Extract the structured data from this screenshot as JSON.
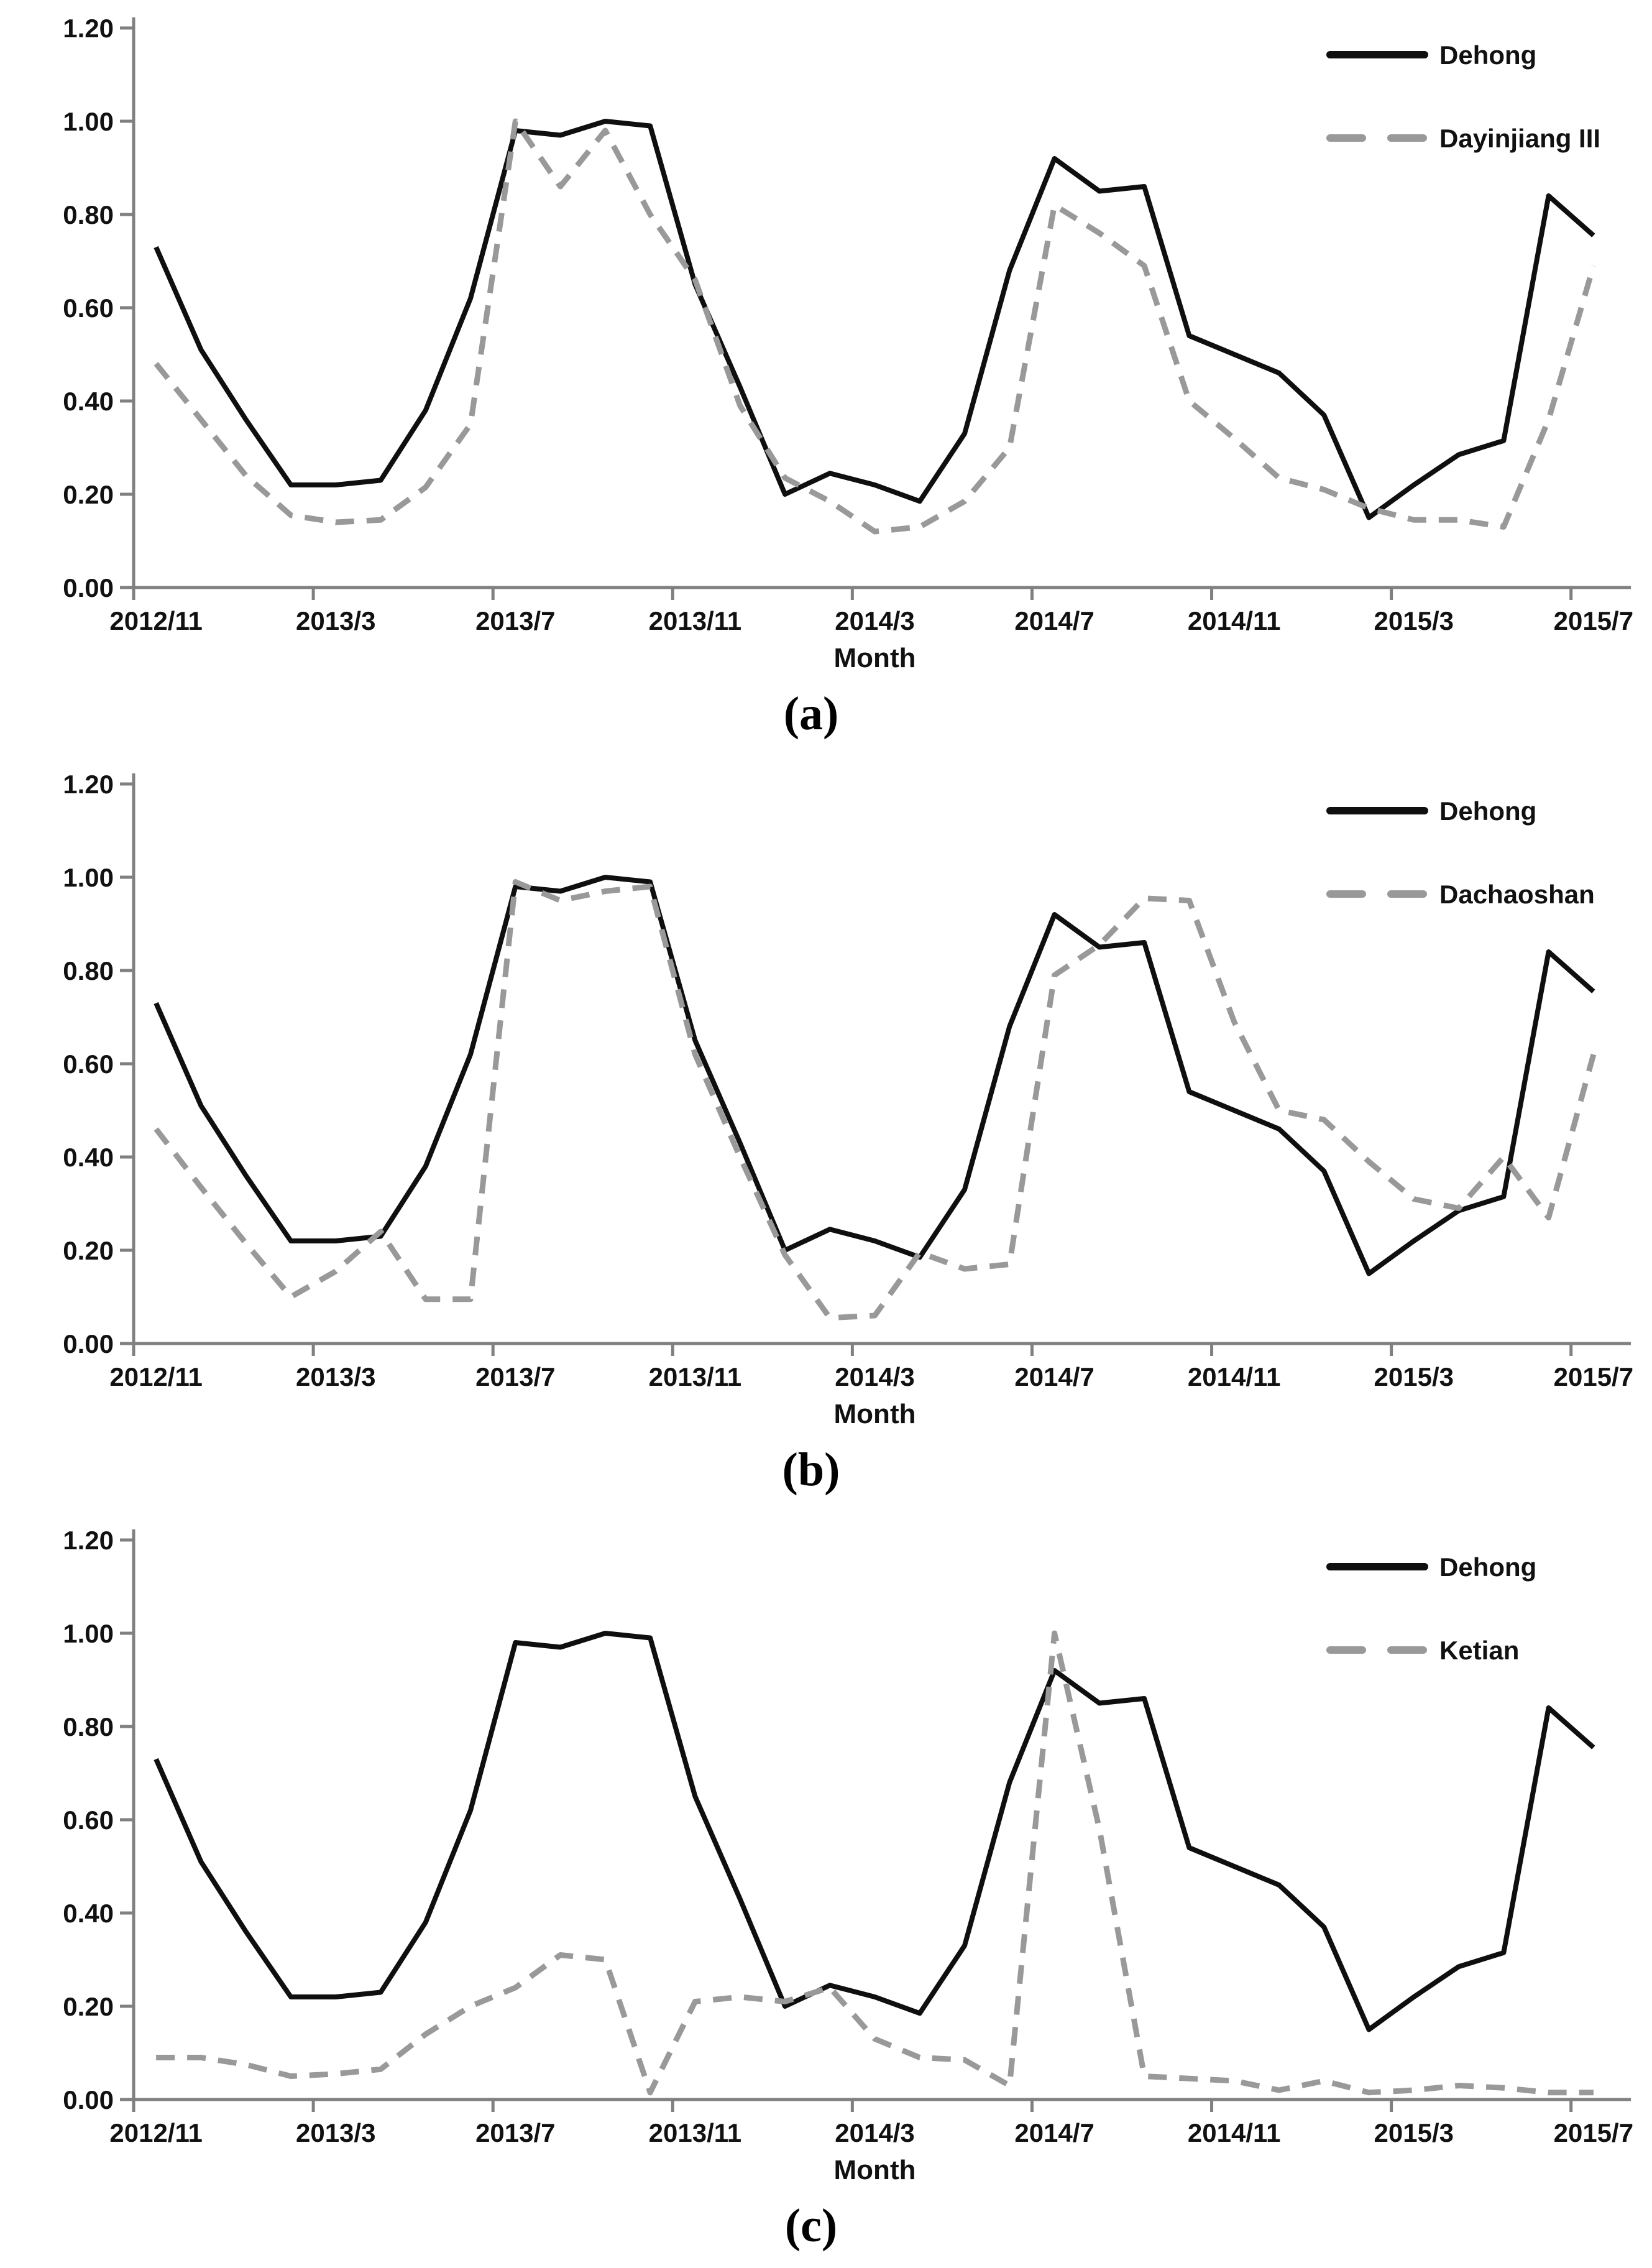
{
  "figure": {
    "x_axis_title": "Month",
    "y_tick_labels": [
      "1.20",
      "1.00",
      "0.80",
      "0.60",
      "0.40",
      "0.20",
      "0.00"
    ],
    "x_tick_labels": [
      "2012/11",
      "2013/3",
      "2013/7",
      "2013/11",
      "2014/3",
      "2014/7",
      "2014/11",
      "2015/3",
      "2015/7"
    ],
    "colors": {
      "solid_line": "#0f0f0f",
      "dashed_line": "#999999",
      "axis": "#808080",
      "text": "#111111"
    }
  },
  "chart_data": [
    {
      "type": "line",
      "caption": "(a)",
      "xlabel": "Month",
      "ylabel": "",
      "ylim": [
        0.0,
        1.2
      ],
      "y_tick_step": 0.2,
      "grid": false,
      "legend_position": "top-right",
      "x": [
        "2012/11",
        "2012/12",
        "2013/1",
        "2013/2",
        "2013/3",
        "2013/4",
        "2013/5",
        "2013/6",
        "2013/7",
        "2013/8",
        "2013/9",
        "2013/10",
        "2013/11",
        "2013/12",
        "2014/1",
        "2014/2",
        "2014/3",
        "2014/4",
        "2014/5",
        "2014/6",
        "2014/7",
        "2014/8",
        "2014/9",
        "2014/10",
        "2014/11",
        "2014/12",
        "2015/1",
        "2015/2",
        "2015/3",
        "2015/4",
        "2015/5",
        "2015/6",
        "2015/7"
      ],
      "x_tick_labels": [
        "2012/11",
        "2013/3",
        "2013/7",
        "2013/11",
        "2014/3",
        "2014/7",
        "2014/11",
        "2015/3",
        "2015/7"
      ],
      "series": [
        {
          "name": "Dehong",
          "style": "solid",
          "values": [
            0.73,
            0.51,
            0.36,
            0.22,
            0.22,
            0.23,
            0.38,
            0.62,
            0.98,
            0.97,
            1.0,
            0.99,
            0.65,
            0.43,
            0.2,
            0.245,
            0.22,
            0.185,
            0.33,
            0.68,
            0.92,
            0.85,
            0.86,
            0.54,
            0.5,
            0.46,
            0.37,
            0.15,
            0.22,
            0.285,
            0.315,
            0.84,
            0.755
          ]
        },
        {
          "name": "Dayinjiang III",
          "style": "dashed",
          "values": [
            0.48,
            0.36,
            0.24,
            0.155,
            0.14,
            0.145,
            0.215,
            0.35,
            1.0,
            0.86,
            0.98,
            0.8,
            0.66,
            0.39,
            0.235,
            0.185,
            0.12,
            0.13,
            0.185,
            0.3,
            0.82,
            0.76,
            0.69,
            0.4,
            0.32,
            0.235,
            0.21,
            0.17,
            0.145,
            0.145,
            0.13,
            0.36,
            0.69
          ]
        }
      ]
    },
    {
      "type": "line",
      "caption": "(b)",
      "xlabel": "Month",
      "ylabel": "",
      "ylim": [
        0.0,
        1.2
      ],
      "y_tick_step": 0.2,
      "grid": false,
      "legend_position": "top-right",
      "x": [
        "2012/11",
        "2012/12",
        "2013/1",
        "2013/2",
        "2013/3",
        "2013/4",
        "2013/5",
        "2013/6",
        "2013/7",
        "2013/8",
        "2013/9",
        "2013/10",
        "2013/11",
        "2013/12",
        "2014/1",
        "2014/2",
        "2014/3",
        "2014/4",
        "2014/5",
        "2014/6",
        "2014/7",
        "2014/8",
        "2014/9",
        "2014/10",
        "2014/11",
        "2014/12",
        "2015/1",
        "2015/2",
        "2015/3",
        "2015/4",
        "2015/5",
        "2015/6",
        "2015/7"
      ],
      "x_tick_labels": [
        "2012/11",
        "2013/3",
        "2013/7",
        "2013/11",
        "2014/3",
        "2014/7",
        "2014/11",
        "2015/3",
        "2015/7"
      ],
      "series": [
        {
          "name": "Dehong",
          "style": "solid",
          "values": [
            0.73,
            0.51,
            0.36,
            0.22,
            0.22,
            0.23,
            0.38,
            0.62,
            0.98,
            0.97,
            1.0,
            0.99,
            0.65,
            0.43,
            0.2,
            0.245,
            0.22,
            0.185,
            0.33,
            0.68,
            0.92,
            0.85,
            0.86,
            0.54,
            0.5,
            0.46,
            0.37,
            0.15,
            0.22,
            0.285,
            0.315,
            0.84,
            0.755
          ]
        },
        {
          "name": "Dachaoshan",
          "style": "dashed",
          "values": [
            0.46,
            0.335,
            0.215,
            0.1,
            0.155,
            0.24,
            0.095,
            0.095,
            0.99,
            0.95,
            0.97,
            0.98,
            0.62,
            0.4,
            0.19,
            0.055,
            0.06,
            0.195,
            0.16,
            0.17,
            0.79,
            0.855,
            0.955,
            0.95,
            0.69,
            0.5,
            0.48,
            0.39,
            0.31,
            0.29,
            0.4,
            0.27,
            0.62
          ]
        }
      ]
    },
    {
      "type": "line",
      "caption": "(c)",
      "xlabel": "Month",
      "ylabel": "",
      "ylim": [
        0.0,
        1.2
      ],
      "y_tick_step": 0.2,
      "grid": false,
      "legend_position": "top-right",
      "x": [
        "2012/11",
        "2012/12",
        "2013/1",
        "2013/2",
        "2013/3",
        "2013/4",
        "2013/5",
        "2013/6",
        "2013/7",
        "2013/8",
        "2013/9",
        "2013/10",
        "2013/11",
        "2013/12",
        "2014/1",
        "2014/2",
        "2014/3",
        "2014/4",
        "2014/5",
        "2014/6",
        "2014/7",
        "2014/8",
        "2014/9",
        "2014/10",
        "2014/11",
        "2014/12",
        "2015/1",
        "2015/2",
        "2015/3",
        "2015/4",
        "2015/5",
        "2015/6",
        "2015/7"
      ],
      "x_tick_labels": [
        "2012/11",
        "2013/3",
        "2013/7",
        "2013/11",
        "2014/3",
        "2014/7",
        "2014/11",
        "2015/3",
        "2015/7"
      ],
      "series": [
        {
          "name": "Dehong",
          "style": "solid",
          "values": [
            0.73,
            0.51,
            0.36,
            0.22,
            0.22,
            0.23,
            0.38,
            0.62,
            0.98,
            0.97,
            1.0,
            0.99,
            0.65,
            0.43,
            0.2,
            0.245,
            0.22,
            0.185,
            0.33,
            0.68,
            0.92,
            0.85,
            0.86,
            0.54,
            0.5,
            0.46,
            0.37,
            0.15,
            0.22,
            0.285,
            0.315,
            0.84,
            0.755
          ]
        },
        {
          "name": "Ketian",
          "style": "dashed",
          "values": [
            0.09,
            0.09,
            0.075,
            0.05,
            0.055,
            0.065,
            0.14,
            0.2,
            0.24,
            0.31,
            0.3,
            0.015,
            0.21,
            0.22,
            0.21,
            0.24,
            0.13,
            0.09,
            0.085,
            0.03,
            1.0,
            0.58,
            0.05,
            0.045,
            0.04,
            0.02,
            0.04,
            0.015,
            0.02,
            0.03,
            0.025,
            0.015,
            0.015
          ]
        }
      ]
    }
  ]
}
